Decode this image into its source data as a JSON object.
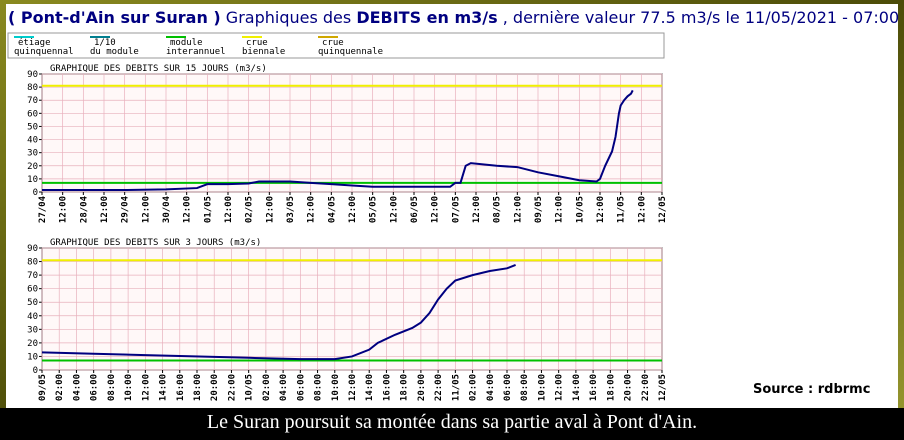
{
  "header": {
    "parts": [
      {
        "text": "( Pont-d'Ain sur Suran )",
        "bold": true
      },
      {
        "text": " Graphiques des ",
        "bold": false
      },
      {
        "text": "DEBITS en m3/s",
        "bold": true
      },
      {
        "text": " , dernière valeur 77.5 m3/s le 11/05/2021 - 07:00",
        "bold": false
      }
    ]
  },
  "legend": [
    {
      "lines": [
        "étiage",
        "quinquennal"
      ],
      "color": "#00cccc"
    },
    {
      "lines": [
        "1/10",
        "du module"
      ],
      "color": "#007f8f"
    },
    {
      "lines": [
        "module",
        "interannuel"
      ],
      "color": "#00c000"
    },
    {
      "lines": [
        "crue",
        "biennale"
      ],
      "color": "#f0f000"
    },
    {
      "lines": [
        "crue",
        "quinquennale"
      ],
      "color": "#d0a800"
    }
  ],
  "source": "Source : rdbrmc",
  "caption": "Le Suran poursuit sa montée dans sa partie aval à Pont d'Ain.",
  "chart_data": [
    {
      "type": "line",
      "title": "GRAPHIQUE DES DEBITS SUR 15 JOURS (m3/s)",
      "xlim": [
        "27/04 00:00",
        "12/05 00:00"
      ],
      "xticks": [
        {
          "value": "27/04 00:00",
          "label": "27/04"
        },
        {
          "value": "27/04 12:00",
          "label": "12:00"
        },
        {
          "value": "28/04 00:00",
          "label": "28/04"
        },
        {
          "value": "28/04 12:00",
          "label": "12:00"
        },
        {
          "value": "29/04 00:00",
          "label": "29/04"
        },
        {
          "value": "29/04 12:00",
          "label": "12:00"
        },
        {
          "value": "30/04 00:00",
          "label": "30/04"
        },
        {
          "value": "30/04 12:00",
          "label": "12:00"
        },
        {
          "value": "01/05 00:00",
          "label": "01/05"
        },
        {
          "value": "01/05 12:00",
          "label": "12:00"
        },
        {
          "value": "02/05 00:00",
          "label": "02/05"
        },
        {
          "value": "02/05 12:00",
          "label": "12:00"
        },
        {
          "value": "03/05 00:00",
          "label": "03/05"
        },
        {
          "value": "03/05 12:00",
          "label": "12:00"
        },
        {
          "value": "04/05 00:00",
          "label": "04/05"
        },
        {
          "value": "04/05 12:00",
          "label": "12:00"
        },
        {
          "value": "05/05 00:00",
          "label": "05/05"
        },
        {
          "value": "05/05 12:00",
          "label": "12:00"
        },
        {
          "value": "06/05 00:00",
          "label": "06/05"
        },
        {
          "value": "06/05 12:00",
          "label": "12:00"
        },
        {
          "value": "07/05 00:00",
          "label": "07/05"
        },
        {
          "value": "07/05 12:00",
          "label": "12:00"
        },
        {
          "value": "08/05 00:00",
          "label": "08/05"
        },
        {
          "value": "08/05 12:00",
          "label": "12:00"
        },
        {
          "value": "09/05 00:00",
          "label": "09/05"
        },
        {
          "value": "09/05 12:00",
          "label": "12:00"
        },
        {
          "value": "10/05 00:00",
          "label": "10/05"
        },
        {
          "value": "10/05 12:00",
          "label": "12:00"
        },
        {
          "value": "11/05 00:00",
          "label": "11/05"
        },
        {
          "value": "11/05 12:00",
          "label": "12:00"
        },
        {
          "value": "12/05 00:00",
          "label": "12/05"
        }
      ],
      "ylim": [
        0,
        90
      ],
      "yticks": [
        0,
        10,
        20,
        30,
        40,
        50,
        60,
        70,
        80,
        90
      ],
      "grid": true,
      "reference_lines": [
        {
          "value": 7,
          "color": "#00c000"
        },
        {
          "value": 81,
          "color": "#f0f000"
        }
      ],
      "series": [
        {
          "color": "#000080",
          "x": [
            "27/04 00:00",
            "29/04 00:00",
            "30/04 00:00",
            "30/04 18:00",
            "01/05 00:00",
            "01/05 12:00",
            "02/05 00:00",
            "02/05 06:00",
            "03/05 00:00",
            "03/05 12:00",
            "04/05 00:00",
            "04/05 12:00",
            "05/05 00:00",
            "06/05 00:00",
            "06/05 21:00",
            "07/05 00:00",
            "07/05 03:00",
            "07/05 06:00",
            "07/05 09:00",
            "08/05 00:00",
            "08/05 12:00",
            "09/05 00:00",
            "09/05 12:00",
            "10/05 00:00",
            "10/05 10:00",
            "10/05 12:00",
            "10/05 15:00",
            "10/05 19:00",
            "10/05 21:00",
            "10/05 23:00",
            "11/05 00:00",
            "11/05 02:00",
            "11/05 04:00",
            "11/05 06:00",
            "11/05 07:00"
          ],
          "values": [
            1.5,
            1.5,
            2,
            3,
            6,
            6,
            6.5,
            8,
            8,
            7,
            6,
            5,
            4,
            4,
            4,
            7,
            7,
            20,
            22,
            20,
            19,
            15,
            12,
            9,
            8,
            10,
            20,
            31,
            42,
            60,
            66,
            70,
            73,
            75,
            77.5
          ]
        }
      ]
    },
    {
      "type": "line",
      "title": "GRAPHIQUE DES DEBITS SUR 3 JOURS (m3/s)",
      "xlim": [
        "09/05 00:00",
        "12/05 00:00"
      ],
      "xticks": [
        {
          "value": "09/05 00:00",
          "label": "09/05"
        },
        {
          "value": "09/05 02:00",
          "label": "02:00"
        },
        {
          "value": "09/05 04:00",
          "label": "04:00"
        },
        {
          "value": "09/05 06:00",
          "label": "06:00"
        },
        {
          "value": "09/05 08:00",
          "label": "08:00"
        },
        {
          "value": "09/05 10:00",
          "label": "10:00"
        },
        {
          "value": "09/05 12:00",
          "label": "12:00"
        },
        {
          "value": "09/05 14:00",
          "label": "14:00"
        },
        {
          "value": "09/05 16:00",
          "label": "16:00"
        },
        {
          "value": "09/05 18:00",
          "label": "18:00"
        },
        {
          "value": "09/05 20:00",
          "label": "20:00"
        },
        {
          "value": "09/05 22:00",
          "label": "22:00"
        },
        {
          "value": "10/05 00:00",
          "label": "10/05"
        },
        {
          "value": "10/05 02:00",
          "label": "02:00"
        },
        {
          "value": "10/05 04:00",
          "label": "04:00"
        },
        {
          "value": "10/05 06:00",
          "label": "06:00"
        },
        {
          "value": "10/05 08:00",
          "label": "08:00"
        },
        {
          "value": "10/05 10:00",
          "label": "10:00"
        },
        {
          "value": "10/05 12:00",
          "label": "12:00"
        },
        {
          "value": "10/05 14:00",
          "label": "14:00"
        },
        {
          "value": "10/05 16:00",
          "label": "16:00"
        },
        {
          "value": "10/05 18:00",
          "label": "18:00"
        },
        {
          "value": "10/05 20:00",
          "label": "20:00"
        },
        {
          "value": "10/05 22:00",
          "label": "22:00"
        },
        {
          "value": "11/05 00:00",
          "label": "11/05"
        },
        {
          "value": "11/05 02:00",
          "label": "02:00"
        },
        {
          "value": "11/05 04:00",
          "label": "04:00"
        },
        {
          "value": "11/05 06:00",
          "label": "06:00"
        },
        {
          "value": "11/05 08:00",
          "label": "08:00"
        },
        {
          "value": "11/05 10:00",
          "label": "10:00"
        },
        {
          "value": "11/05 12:00",
          "label": "12:00"
        },
        {
          "value": "11/05 14:00",
          "label": "14:00"
        },
        {
          "value": "11/05 16:00",
          "label": "16:00"
        },
        {
          "value": "11/05 18:00",
          "label": "18:00"
        },
        {
          "value": "11/05 20:00",
          "label": "20:00"
        },
        {
          "value": "11/05 22:00",
          "label": "22:00"
        },
        {
          "value": "12/05 00:00",
          "label": "12/05"
        }
      ],
      "ylim": [
        0,
        90
      ],
      "yticks": [
        0,
        10,
        20,
        30,
        40,
        50,
        60,
        70,
        80,
        90
      ],
      "grid": true,
      "reference_lines": [
        {
          "value": 7,
          "color": "#00c000"
        },
        {
          "value": 81,
          "color": "#f0f000"
        }
      ],
      "series": [
        {
          "color": "#000080",
          "x": [
            "09/05 00:00",
            "09/05 06:00",
            "09/05 12:00",
            "10/05 00:00",
            "10/05 06:00",
            "10/05 10:00",
            "10/05 12:00",
            "10/05 14:00",
            "10/05 15:00",
            "10/05 17:00",
            "10/05 19:00",
            "10/05 20:00",
            "10/05 21:00",
            "10/05 22:00",
            "10/05 23:00",
            "11/05 00:00",
            "11/05 02:00",
            "11/05 04:00",
            "11/05 06:00",
            "11/05 07:00"
          ],
          "values": [
            13,
            12,
            11,
            9,
            8,
            8,
            10,
            15,
            20,
            26,
            31,
            35,
            42,
            52,
            60,
            66,
            70,
            73,
            75,
            77.5
          ]
        }
      ]
    }
  ]
}
